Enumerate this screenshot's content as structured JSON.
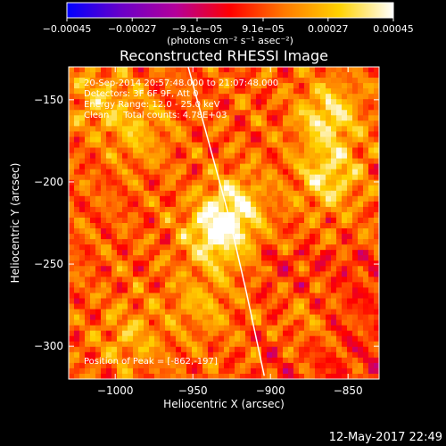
{
  "chart_data": {
    "type": "heatmap",
    "title": "Reconstructed RHESSI Image",
    "xlabel": "Heliocentric X (arcsec)",
    "ylabel": "Heliocentric Y (arcsec)",
    "xlim": [
      -1030,
      -830
    ],
    "ylim": [
      -320,
      -130
    ],
    "x_ticks": [
      -1000,
      -950,
      -900,
      -850
    ],
    "x_tick_labels": [
      "−1000",
      "−950",
      "−900",
      "−850"
    ],
    "y_ticks": [
      -300,
      -250,
      -200,
      -150
    ],
    "y_tick_labels": [
      "−300",
      "−250",
      "−200",
      "−150"
    ],
    "colorbar": {
      "range": [
        -0.00045,
        0.00045
      ],
      "ticks": [
        -0.00045,
        -0.00027,
        -9.1e-05,
        9.1e-05,
        0.00027,
        0.00045
      ],
      "tick_labels": [
        "−0.00045",
        "−0.00027",
        "−9.1e−05",
        "9.1e−05",
        "0.00027",
        "0.00045"
      ],
      "unit_label": "(photons cm⁻² s⁻¹ asec⁻²)",
      "colormap": [
        "#0000ff",
        "#6a00c8",
        "#b4009a",
        "#ff0000",
        "#ff7a00",
        "#ffd200",
        "#ffffff"
      ]
    },
    "annotations": [
      "20-Sep-2014 20:57:48.000 to 21:07:48.000",
      "Detectors: 3F 6F 9F, Att 0",
      "Energy Range: 12.0 - 25.0 keV",
      "Clean     Total counts: 4.78E+03"
    ],
    "peak_label": "Position of Peak = [-862,-197]",
    "peak": [
      -862,
      -197
    ],
    "limb_arc": [
      [
        -953,
        -130
      ],
      [
        -940,
        -175
      ],
      [
        -927,
        -220
      ],
      [
        -916,
        -265
      ],
      [
        -904,
        -318
      ]
    ],
    "features": [
      {
        "x": -935,
        "y": -232,
        "amp": 1.0
      },
      {
        "x": -922,
        "y": -215,
        "amp": 0.75
      },
      {
        "x": -863,
        "y": -160,
        "amp": 0.85
      },
      {
        "x": -862,
        "y": -197,
        "amp": 0.8
      },
      {
        "x": -1010,
        "y": -150,
        "amp": 0.5
      },
      {
        "x": -985,
        "y": -170,
        "amp": 0.45
      },
      {
        "x": -990,
        "y": -295,
        "amp": 0.45
      },
      {
        "x": -945,
        "y": -275,
        "amp": 0.4
      },
      {
        "x": -880,
        "y": -285,
        "amp": 0.35
      }
    ]
  },
  "footer": {
    "timestamp": "12-May-2017 22:49"
  }
}
